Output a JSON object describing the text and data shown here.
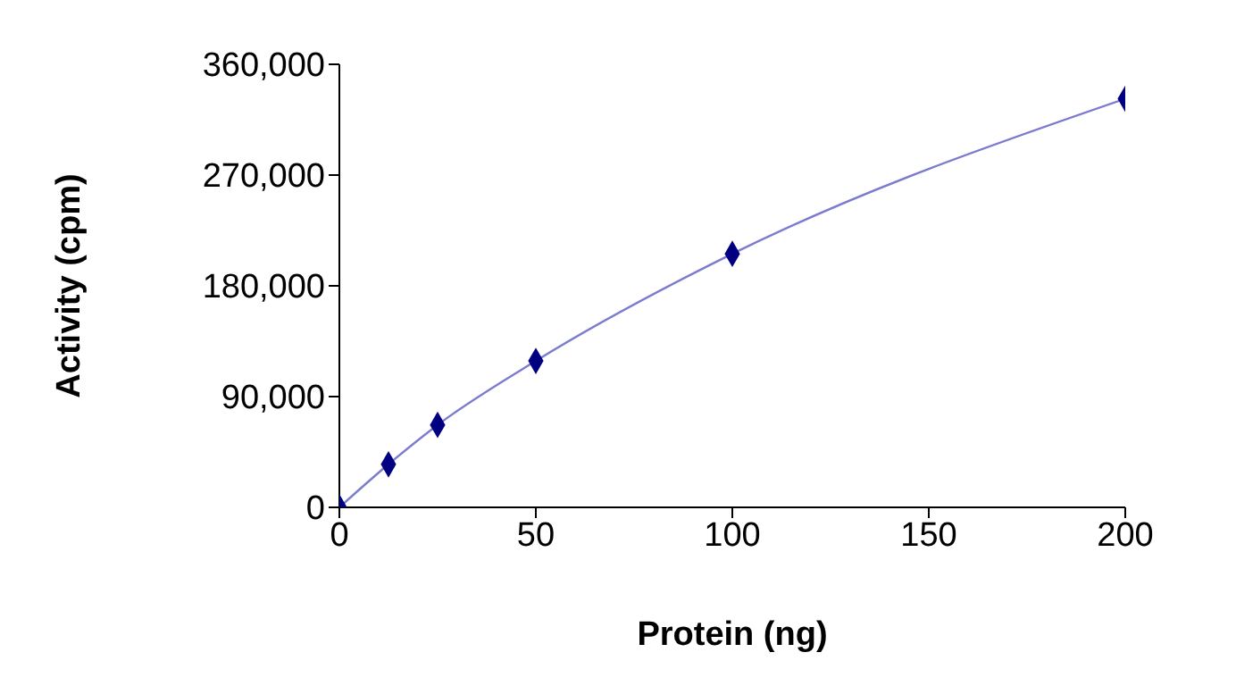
{
  "chart_data": {
    "type": "line",
    "xlabel": "Protein (ng)",
    "ylabel": "Activity (cpm)",
    "x": [
      0,
      12.5,
      25,
      50,
      100,
      200
    ],
    "series": [
      {
        "color": "#7b7bd0",
        "values": [
          0,
          35000,
          67000,
          119000,
          206000,
          332000
        ],
        "marker": "none"
      },
      {
        "type": "scatter",
        "color": "#000080",
        "values": [
          0,
          35000,
          67000,
          119000,
          206000,
          332000
        ],
        "marker": "diamond"
      }
    ],
    "xlim": [
      0,
      200
    ],
    "xticks": [
      0,
      50,
      100,
      150,
      200
    ],
    "ylim": [
      0,
      360000
    ],
    "yticks": [
      0,
      {
        "value": 90000,
        "label": "90,000"
      },
      {
        "value": 180000,
        "label": "180,000"
      },
      {
        "value": 270000,
        "label": "270,000"
      },
      {
        "value": 360000,
        "label": "360,000"
      }
    ],
    "grid": false
  }
}
